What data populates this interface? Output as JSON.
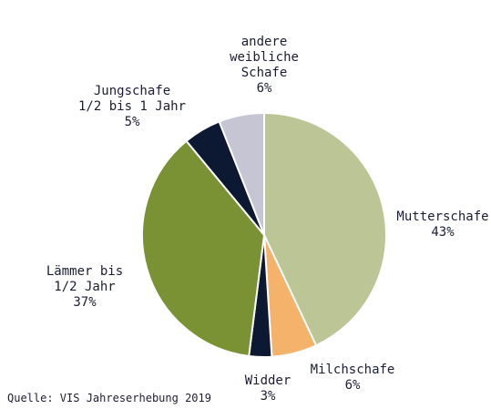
{
  "chart_data": {
    "type": "pie",
    "categories": [
      "Mutterschafe",
      "Milchschafe",
      "Widder",
      "Lämmer bis\n1/2 Jahr",
      "Jungschafe\n1/2 bis 1 Jahr",
      "andere\nweibliche\nSchafe"
    ],
    "values": [
      43,
      6,
      3,
      37,
      5,
      6
    ],
    "value_labels": [
      "43%",
      "6%",
      "3%",
      "37%",
      "5%",
      "6%"
    ],
    "colors": [
      "#bcc596",
      "#f5b26b",
      "#0d1833",
      "#7a9234",
      "#0d1833",
      "#c5c5d4"
    ],
    "source": "Quelle: VIS Jahreserhebung 2019"
  }
}
